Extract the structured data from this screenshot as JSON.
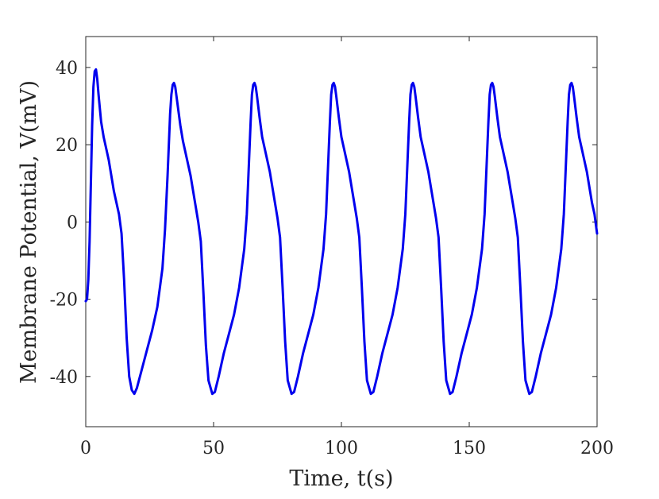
{
  "chart_data": {
    "type": "line",
    "title": "",
    "xlabel": "Time, t(s)",
    "ylabel": "Membrane Potential, V(mV)",
    "xlim": [
      0,
      200
    ],
    "ylim": [
      -53,
      48
    ],
    "xticks": [
      0,
      50,
      100,
      150,
      200
    ],
    "yticks": [
      -40,
      -20,
      0,
      20,
      40
    ],
    "xtick_labels": [
      "0",
      "50",
      "100",
      "150",
      "200"
    ],
    "ytick_labels": [
      "-40",
      "-20",
      "0",
      "20",
      "40"
    ],
    "grid": false,
    "legend": "none",
    "series": [
      {
        "color": "#0000ee",
        "x": [
          0,
          0.5,
          1,
          1.5,
          2,
          2.5,
          3,
          3.5,
          4,
          4.5,
          5,
          6,
          7,
          8,
          9,
          10,
          11,
          12,
          13,
          14,
          15,
          16,
          17,
          18,
          19,
          20,
          22,
          24,
          26,
          28,
          30,
          31,
          32,
          33,
          33.5,
          34,
          34.5,
          35,
          35.5,
          36,
          37,
          38,
          39,
          40,
          41,
          42,
          43,
          44,
          45,
          46,
          47,
          48,
          49.5,
          50.5,
          52,
          54,
          56,
          58,
          60,
          62,
          63,
          64,
          64.5,
          65,
          65.5,
          66,
          66.5,
          67,
          68,
          69,
          70,
          71,
          72,
          73,
          74,
          75,
          76,
          77,
          78,
          79,
          80.5,
          81.5,
          83,
          85,
          87,
          89,
          91,
          93,
          94,
          95,
          95.5,
          96,
          96.5,
          97,
          97.5,
          98,
          99,
          100,
          101,
          102,
          103,
          104,
          105,
          106,
          107,
          108,
          109,
          110,
          111.5,
          112.5,
          114,
          116,
          118,
          120,
          122,
          124,
          125,
          126,
          126.5,
          127,
          127.5,
          128,
          128.5,
          129,
          130,
          131,
          132,
          133,
          134,
          135,
          136,
          137,
          138,
          139,
          140,
          141,
          142.5,
          143.5,
          145,
          147,
          149,
          151,
          153,
          155,
          156,
          157,
          157.5,
          158,
          158.5,
          159,
          159.5,
          160,
          161,
          162,
          163,
          164,
          165,
          166,
          167,
          168,
          169,
          170,
          171,
          172,
          173.5,
          174.5,
          176,
          178,
          180,
          182,
          184,
          186,
          187,
          188,
          188.5,
          189,
          189.5,
          190,
          190.5,
          191,
          192,
          193,
          194,
          195,
          196,
          197,
          198,
          199,
          200
        ],
        "y": [
          -20.5,
          -20,
          -15,
          -5,
          10,
          25,
          35,
          39,
          39.5,
          37,
          33,
          26,
          22,
          19,
          16,
          12,
          8,
          5,
          2,
          -3,
          -15,
          -30,
          -40,
          -43.5,
          -44.5,
          -43,
          -38,
          -33,
          -28,
          -22,
          -12,
          -2,
          12,
          28,
          33,
          35.5,
          36,
          35,
          32.5,
          30,
          25,
          21,
          18,
          15,
          12,
          8,
          4,
          0,
          -5,
          -18,
          -32,
          -41,
          -44.5,
          -44,
          -40,
          -34,
          -29,
          -24,
          -17,
          -7,
          2,
          18,
          26,
          33,
          35.5,
          36,
          35,
          32.5,
          27,
          22,
          19,
          16,
          13,
          9,
          5,
          1,
          -4,
          -17,
          -31,
          -41,
          -44.5,
          -44,
          -40,
          -34,
          -29,
          -24,
          -17,
          -7,
          2,
          18,
          26,
          33,
          35.5,
          36,
          35,
          32.5,
          27,
          22,
          19,
          16,
          13,
          9,
          5,
          1,
          -4,
          -17,
          -31,
          -41,
          -44.5,
          -44,
          -40,
          -34,
          -29,
          -24,
          -17,
          -7,
          2,
          18,
          26,
          33,
          35.5,
          36,
          35,
          32.5,
          27,
          22,
          19,
          16,
          13,
          9,
          5,
          1,
          -4,
          -17,
          -31,
          -41,
          -44.5,
          -44,
          -40,
          -34,
          -29,
          -24,
          -17,
          -7,
          2,
          18,
          26,
          33,
          35.5,
          36,
          35,
          32.5,
          27,
          22,
          19,
          16,
          13,
          9,
          5,
          1,
          -4,
          -17,
          -31,
          -41,
          -44.5,
          -44,
          -40,
          -34,
          -29,
          -24,
          -17,
          -7,
          2,
          18,
          26,
          33,
          35.5,
          36,
          35,
          32.5,
          27,
          22,
          19,
          16,
          13,
          9,
          5,
          2,
          -3
        ]
      }
    ]
  }
}
